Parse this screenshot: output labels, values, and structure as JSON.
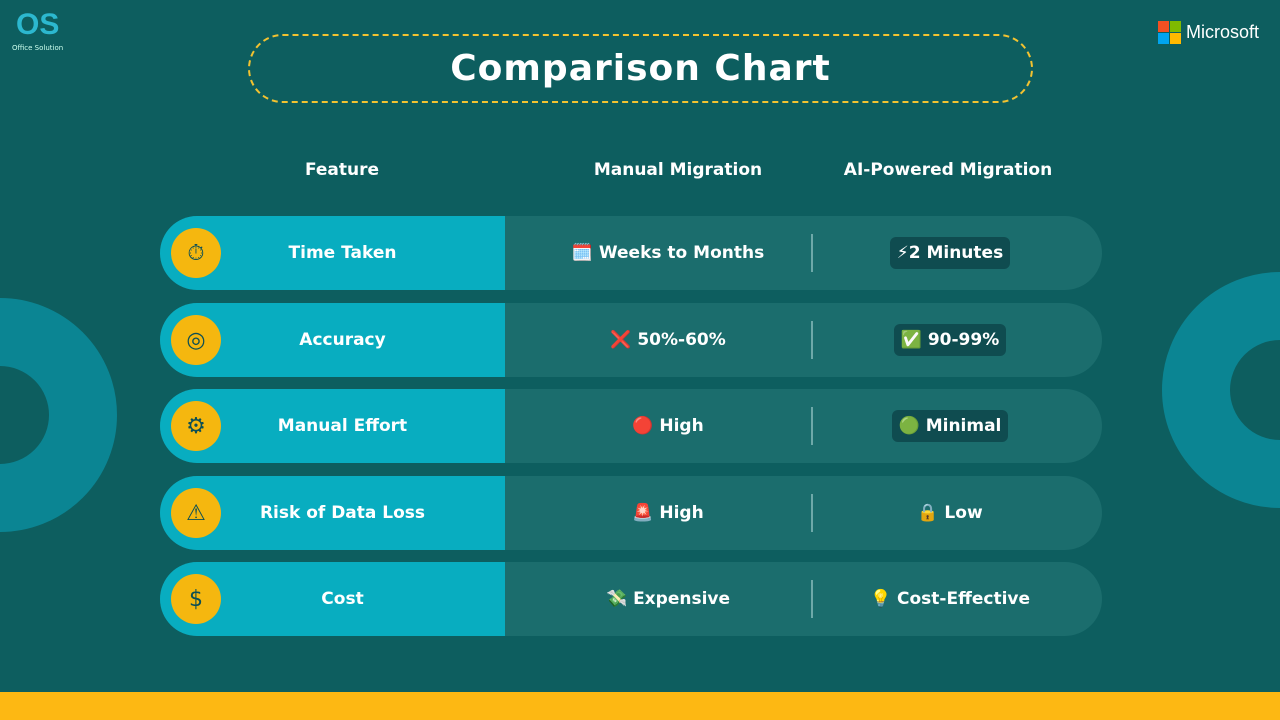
{
  "brand": {
    "logo_text": "OS",
    "logo_sub": "Office Solution",
    "partner": "Microsoft"
  },
  "title": "Comparison Chart",
  "headers": {
    "feature": "Feature",
    "manual": "Manual Migration",
    "ai": "AI-Powered Migration"
  },
  "rows": [
    {
      "feature": "Time Taken",
      "icon": "clock-computer-icon",
      "icon_glyph": "⏱",
      "manual": "🗓️ Weeks to Months",
      "ai": "⚡2 Minutes",
      "ai_pill": true
    },
    {
      "feature": "Accuracy",
      "icon": "target-check-icon",
      "icon_glyph": "◎",
      "manual": "❌ 50%-60%",
      "ai": "✅ 90-99%",
      "ai_pill": true
    },
    {
      "feature": "Manual Effort",
      "icon": "gear-person-icon",
      "icon_glyph": "⚙",
      "manual": "🔴 High",
      "ai": "🟢 Minimal",
      "ai_pill": true
    },
    {
      "feature": "Risk of Data Loss",
      "icon": "falling-chart-warning-icon",
      "icon_glyph": "⚠",
      "manual": "🚨 High",
      "ai": "🔒 Low",
      "ai_pill": false
    },
    {
      "feature": "Cost",
      "icon": "money-hand-icon",
      "icon_glyph": "$",
      "manual": "💸 Expensive",
      "ai": "💡 Cost-Effective",
      "ai_pill": false
    }
  ],
  "colors": {
    "background": "#0d5e5f",
    "feature_cell": "#08adc0",
    "icon_circle": "#f5b70f",
    "accent_border": "#f2c230",
    "footer": "#fdb813"
  }
}
